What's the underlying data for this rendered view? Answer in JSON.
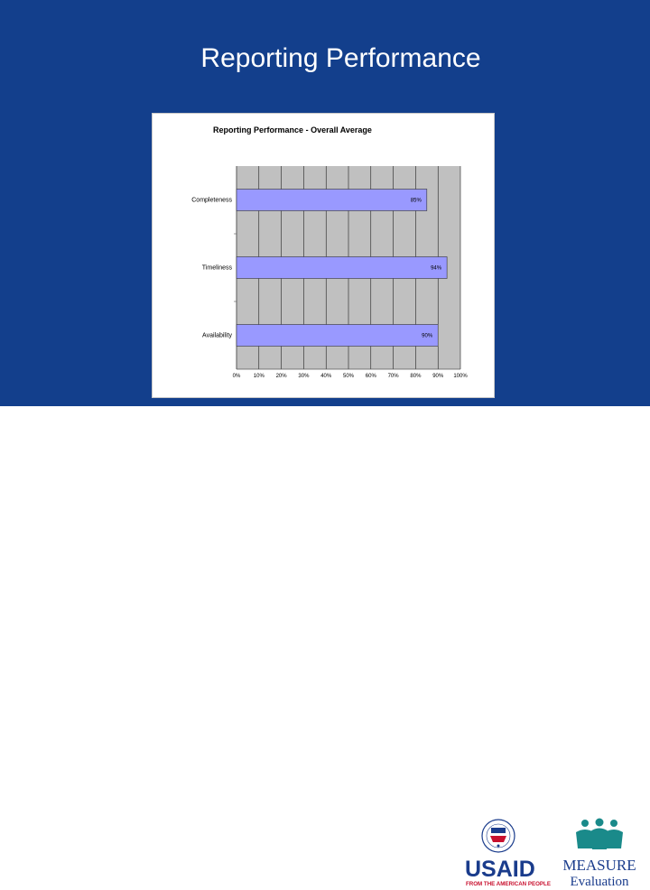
{
  "slide": {
    "title": "Reporting Performance",
    "background": "#133F8C"
  },
  "chart_data": {
    "type": "bar",
    "orientation": "horizontal",
    "title": "Reporting Performance  - Overall Average",
    "categories": [
      "Completeness",
      "Timeliness",
      "Availability"
    ],
    "values": [
      85,
      94,
      90
    ],
    "value_labels": [
      "85%",
      "94%",
      "90%"
    ],
    "xlim": [
      0,
      100
    ],
    "x_ticks": [
      "0%",
      "10%",
      "20%",
      "30%",
      "40%",
      "50%",
      "60%",
      "70%",
      "80%",
      "90%",
      "100%"
    ],
    "xlabel": "",
    "ylabel": "",
    "grid": true,
    "bar_color": "#9999FF",
    "plot_background": "#C0C0C0"
  },
  "logos": {
    "usaid": {
      "name": "USAID",
      "tagline": "FROM THE AMERICAN PEOPLE",
      "icon": "usaid-seal-icon",
      "color": "#1A3C8C",
      "accent": "#C8102E"
    },
    "measure": {
      "name": "MEASURE",
      "subtitle": "Evaluation",
      "icon": "measure-people-icon",
      "color": "#1A8A8A"
    }
  }
}
